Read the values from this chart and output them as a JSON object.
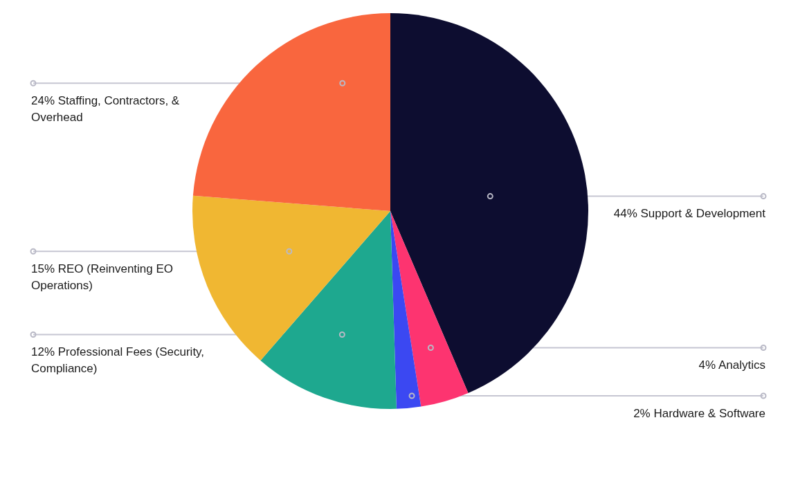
{
  "chart_data": {
    "type": "pie",
    "categories": [
      "Support & Development",
      "Analytics",
      "Hardware & Software",
      "Professional Fees (Security, Compliance)",
      "REO (Reinventing EO Operations)",
      "Staffing, Contractors, & Overhead"
    ],
    "values": [
      44,
      4,
      2,
      12,
      15,
      24
    ],
    "colors": [
      "#0d0d30",
      "#fd3470",
      "#3b48f2",
      "#1ea88f",
      "#f0b732",
      "#f9663e"
    ],
    "value_labels": [
      "44%",
      "4%",
      "2%",
      "12%",
      "15%",
      "24%"
    ]
  }
}
